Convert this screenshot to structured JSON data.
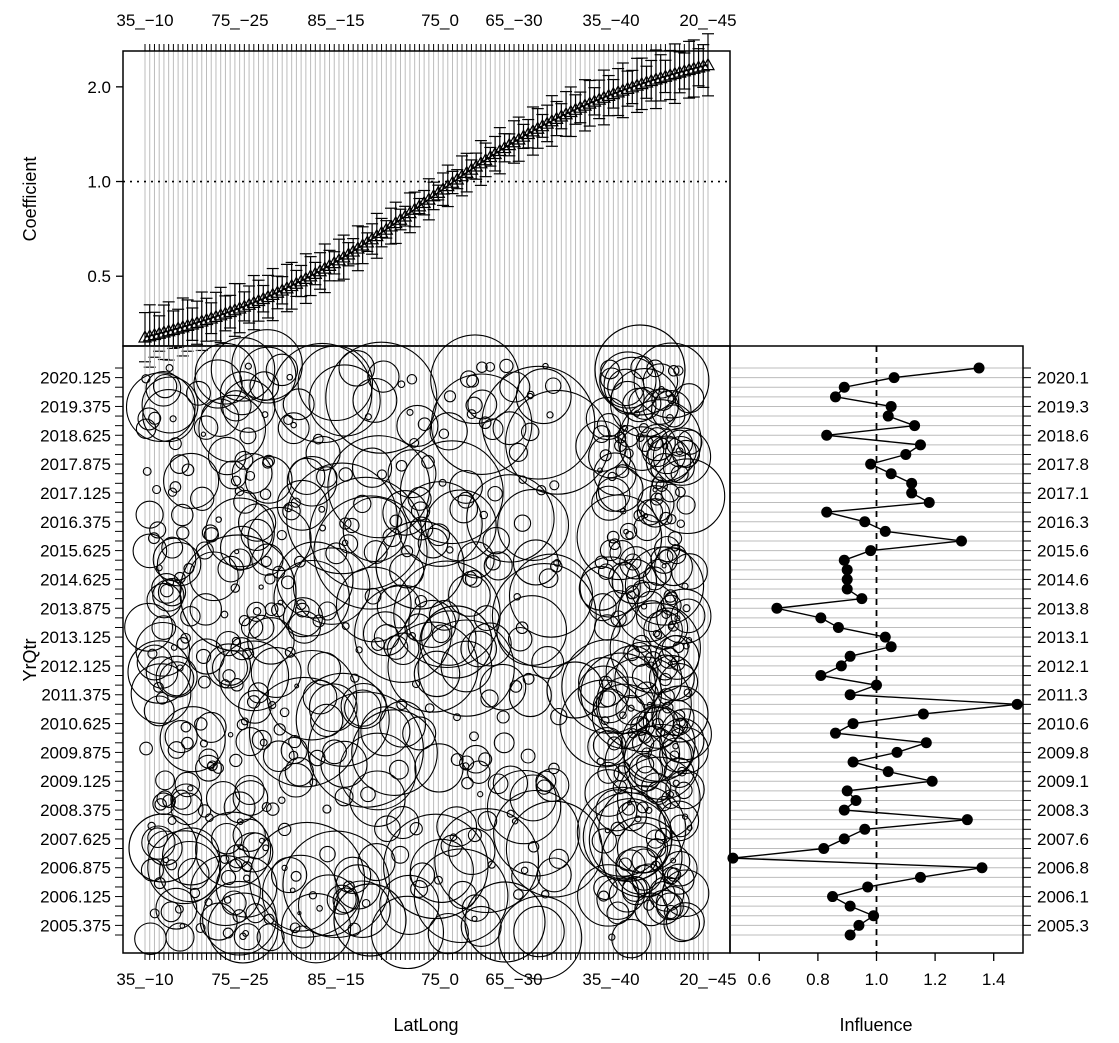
{
  "chart_data": [
    {
      "panel": "coefficient",
      "type": "line",
      "ylabel": "Coefficient",
      "x_tick_labels": [
        "35_−10",
        "75_−25",
        "85_−15",
        "75_0",
        "65_−30",
        "35_−40",
        "20_−45"
      ],
      "y_ticks": [
        0.5,
        1.0,
        2.0
      ],
      "y_tick_labels": [
        "0.5",
        "1.0",
        "2.0"
      ],
      "ylim": [
        0.3,
        2.6
      ],
      "y_scale": "log",
      "reference_line": 1.0,
      "n_levels": 120,
      "coefficient_start": 0.32,
      "coefficient_end": 2.35,
      "marker": "triangle",
      "error_bars": true
    },
    {
      "panel": "bubble",
      "type": "scatter",
      "xlabel": "LatLong",
      "ylabel": "YrQtr",
      "x_tick_labels": [
        "35_−10",
        "75_−25",
        "85_−15",
        "75_0",
        "65_−30",
        "35_−40",
        "20_−45"
      ],
      "y_tick_labels": [
        "2020.125",
        "2019.375",
        "2018.625",
        "2017.875",
        "2017.125",
        "2016.375",
        "2015.625",
        "2014.625",
        "2013.875",
        "2013.125",
        "2012.125",
        "2011.375",
        "2010.625",
        "2009.875",
        "2009.125",
        "2008.375",
        "2007.625",
        "2006.875",
        "2006.125",
        "2005.375"
      ],
      "marker": "open-circle"
    },
    {
      "panel": "influence",
      "type": "line",
      "xlabel": "Influence",
      "xlim": [
        0.5,
        1.5
      ],
      "x_ticks": [
        0.6,
        0.8,
        1.0,
        1.2,
        1.4
      ],
      "x_tick_labels": [
        "0.6",
        "0.8",
        "1.0",
        "1.2",
        "1.4"
      ],
      "reference_line": 1.0,
      "y_tick_labels": [
        "2020.1",
        "2019.3",
        "2018.6",
        "2017.8",
        "2017.1",
        "2016.3",
        "2015.6",
        "2014.6",
        "2013.8",
        "2013.1",
        "2012.1",
        "2011.3",
        "2010.6",
        "2009.8",
        "2009.1",
        "2008.3",
        "2007.6",
        "2006.8",
        "2006.1",
        "2005.3"
      ],
      "values": [
        1.35,
        1.06,
        0.89,
        0.86,
        1.05,
        1.04,
        1.13,
        0.83,
        1.15,
        1.1,
        0.98,
        1.05,
        1.12,
        1.12,
        1.18,
        0.83,
        0.96,
        1.03,
        1.29,
        0.98,
        0.89,
        0.9,
        0.9,
        0.9,
        0.95,
        0.66,
        0.81,
        0.87,
        1.03,
        1.05,
        0.91,
        0.88,
        0.81,
        1.0,
        0.91,
        1.48,
        1.16,
        0.92,
        0.86,
        1.17,
        1.07,
        0.92,
        1.04,
        1.19,
        0.9,
        0.93,
        0.89,
        1.31,
        0.96,
        0.89,
        0.82,
        0.51,
        1.36,
        1.15,
        0.97,
        0.85,
        0.91,
        0.99,
        0.94,
        0.91
      ]
    }
  ]
}
